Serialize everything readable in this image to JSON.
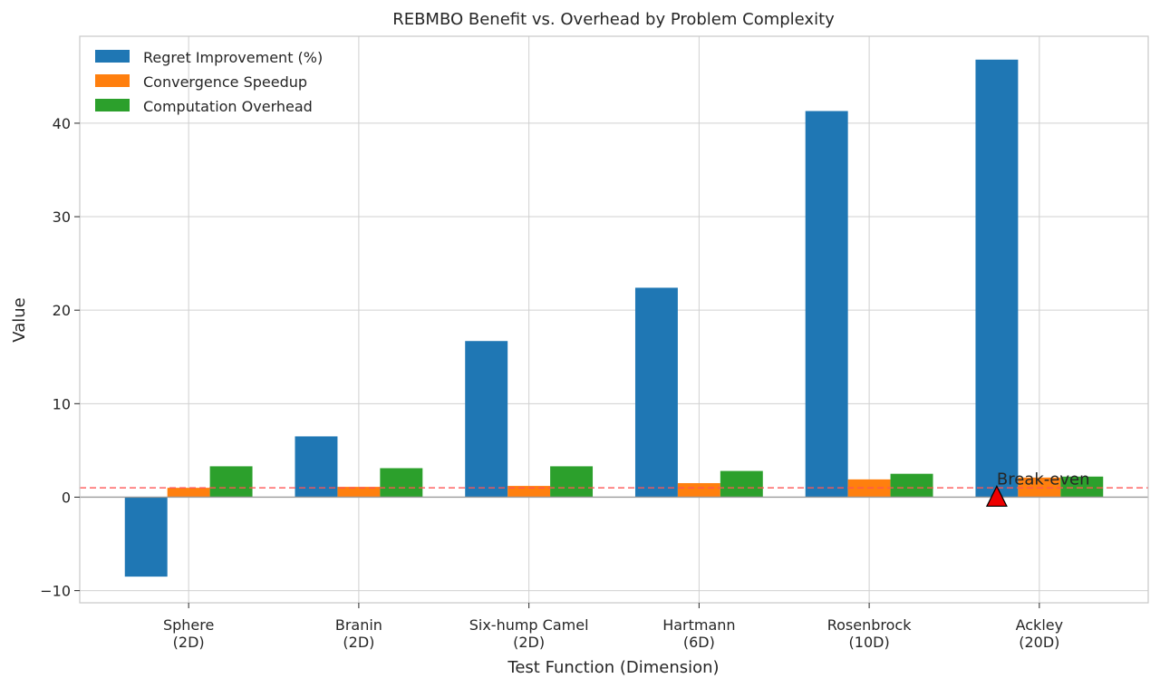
{
  "chart_data": {
    "type": "bar",
    "title": "REBMBO Benefit vs. Overhead by Problem Complexity",
    "xlabel": "Test Function (Dimension)",
    "ylabel": "Value",
    "ylim": [
      -11.3,
      49.3
    ],
    "yticks": [
      -10,
      0,
      10,
      20,
      30,
      40
    ],
    "categories": [
      [
        "Sphere",
        "(2D)"
      ],
      [
        "Branin",
        "(2D)"
      ],
      [
        "Six-hump Camel",
        "(2D)"
      ],
      [
        "Hartmann",
        "(6D)"
      ],
      [
        "Rosenbrock",
        "(10D)"
      ],
      [
        "Ackley",
        "(20D)"
      ]
    ],
    "series": [
      {
        "name": "Regret Improvement (%)",
        "color": "#1f77b4",
        "values": [
          -8.5,
          6.5,
          16.7,
          22.4,
          41.3,
          46.8
        ]
      },
      {
        "name": "Convergence Speedup",
        "color": "#ff7f0e",
        "values": [
          1.0,
          1.1,
          1.2,
          1.5,
          1.9,
          2.1
        ]
      },
      {
        "name": "Computation Overhead",
        "color": "#2ca02c",
        "values": [
          3.3,
          3.1,
          3.3,
          2.8,
          2.5,
          2.2
        ]
      }
    ],
    "reference_line": {
      "y": 1.0,
      "color": "#ff5555",
      "style": "dashed"
    },
    "annotation": {
      "text": "Break-even",
      "x_category": 5,
      "y": 0.0,
      "marker": "triangle",
      "marker_color": "#ee0000"
    },
    "legend_position": "top-left",
    "grid": true
  }
}
